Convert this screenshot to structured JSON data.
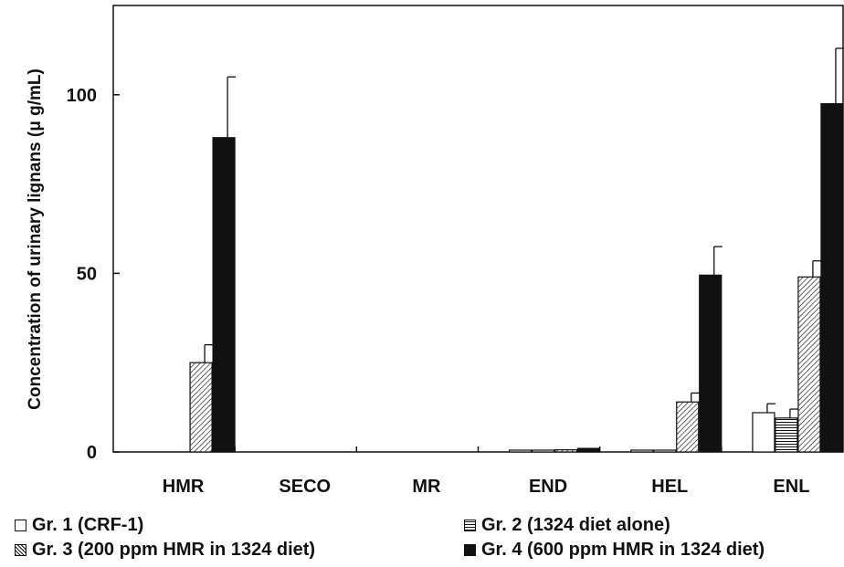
{
  "chart_data": {
    "type": "bar",
    "title": "",
    "xlabel": "",
    "ylabel": "Concentration of urinary lignans (μ g/mL)",
    "ylim": [
      0,
      125
    ],
    "yticks": [
      0,
      50,
      100
    ],
    "grid": false,
    "legend_position": "bottom",
    "categories": [
      "HMR",
      "SECO",
      "MR",
      "END",
      "HEL",
      "ENL"
    ],
    "series": [
      {
        "name": "Gr. 1 (CRF-1)",
        "pattern": "white",
        "values": [
          0,
          0,
          0,
          0.3,
          0.3,
          11
        ],
        "errors": [
          0,
          0,
          0,
          0,
          0,
          2.5
        ]
      },
      {
        "name": "Gr. 2 (1324 diet alone)",
        "pattern": "horizontal-lines",
        "values": [
          0,
          0,
          0,
          0.3,
          0.3,
          9.5
        ],
        "errors": [
          0,
          0,
          0,
          0,
          0,
          2.5
        ]
      },
      {
        "name": "Gr. 3 (200 ppm HMR in 1324 diet)",
        "pattern": "diagonal-lines",
        "values": [
          25,
          0,
          0,
          0.6,
          14,
          49
        ],
        "errors": [
          5,
          0,
          0,
          0,
          2.5,
          4.5
        ]
      },
      {
        "name": "Gr. 4 (600 ppm HMR in 1324 diet)",
        "pattern": "black",
        "values": [
          88,
          0,
          0,
          1,
          49.5,
          97.5
        ],
        "errors": [
          17,
          0,
          0,
          0,
          8,
          15.5
        ]
      }
    ]
  }
}
